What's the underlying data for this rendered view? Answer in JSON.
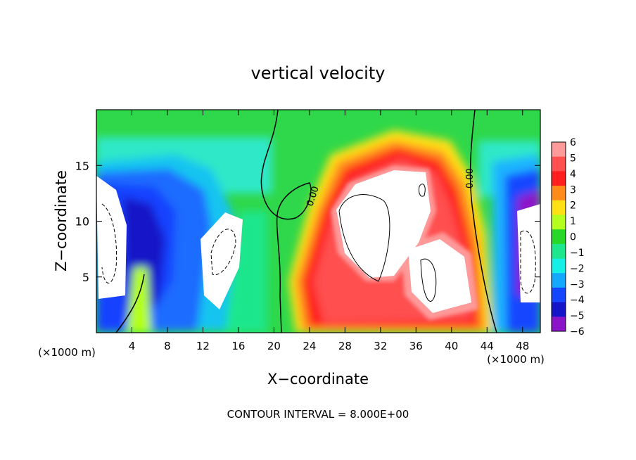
{
  "chart_data": {
    "type": "heatmap",
    "title": "vertical velocity",
    "xlabel": "X−coordinate",
    "ylabel": "Z−coordinate",
    "x_unit_left": "(×1000 m)",
    "x_unit_right": "(×1000 m)",
    "xlim": [
      0,
      50
    ],
    "ylim": [
      0,
      20
    ],
    "x_ticks": [
      4,
      8,
      12,
      16,
      20,
      24,
      28,
      32,
      36,
      40,
      44,
      48
    ],
    "x_tick_labels": [
      "4",
      "8",
      "12",
      "16",
      "20",
      "24",
      "28",
      "32",
      "36",
      "40",
      "44",
      "48"
    ],
    "y_ticks": [
      5,
      10,
      15
    ],
    "y_tick_labels": [
      "5",
      "10",
      "15"
    ],
    "contour_labels": [
      "0.00",
      "0.00"
    ],
    "colorbar": {
      "min": -6,
      "max": 6,
      "tick_values": [
        6,
        5,
        4,
        3,
        2,
        1,
        0,
        -1,
        -2,
        -3,
        -4,
        -5,
        -6
      ],
      "tick_labels": [
        "6",
        "5",
        "4",
        "3",
        "2",
        "1",
        "0",
        "−1",
        "−2",
        "−3",
        "−4",
        "−5",
        "−6"
      ],
      "colors": [
        "#ff9a9a",
        "#ff4f4f",
        "#ff1f1f",
        "#ff8c1a",
        "#ffe014",
        "#b4ff1e",
        "#28d828",
        "#1ee68c",
        "#14f0e6",
        "#14a8ff",
        "#1446ff",
        "#1414c8",
        "#8c14c8"
      ]
    },
    "footer": "CONTOUR INTERVAL = 8.000E+00"
  }
}
